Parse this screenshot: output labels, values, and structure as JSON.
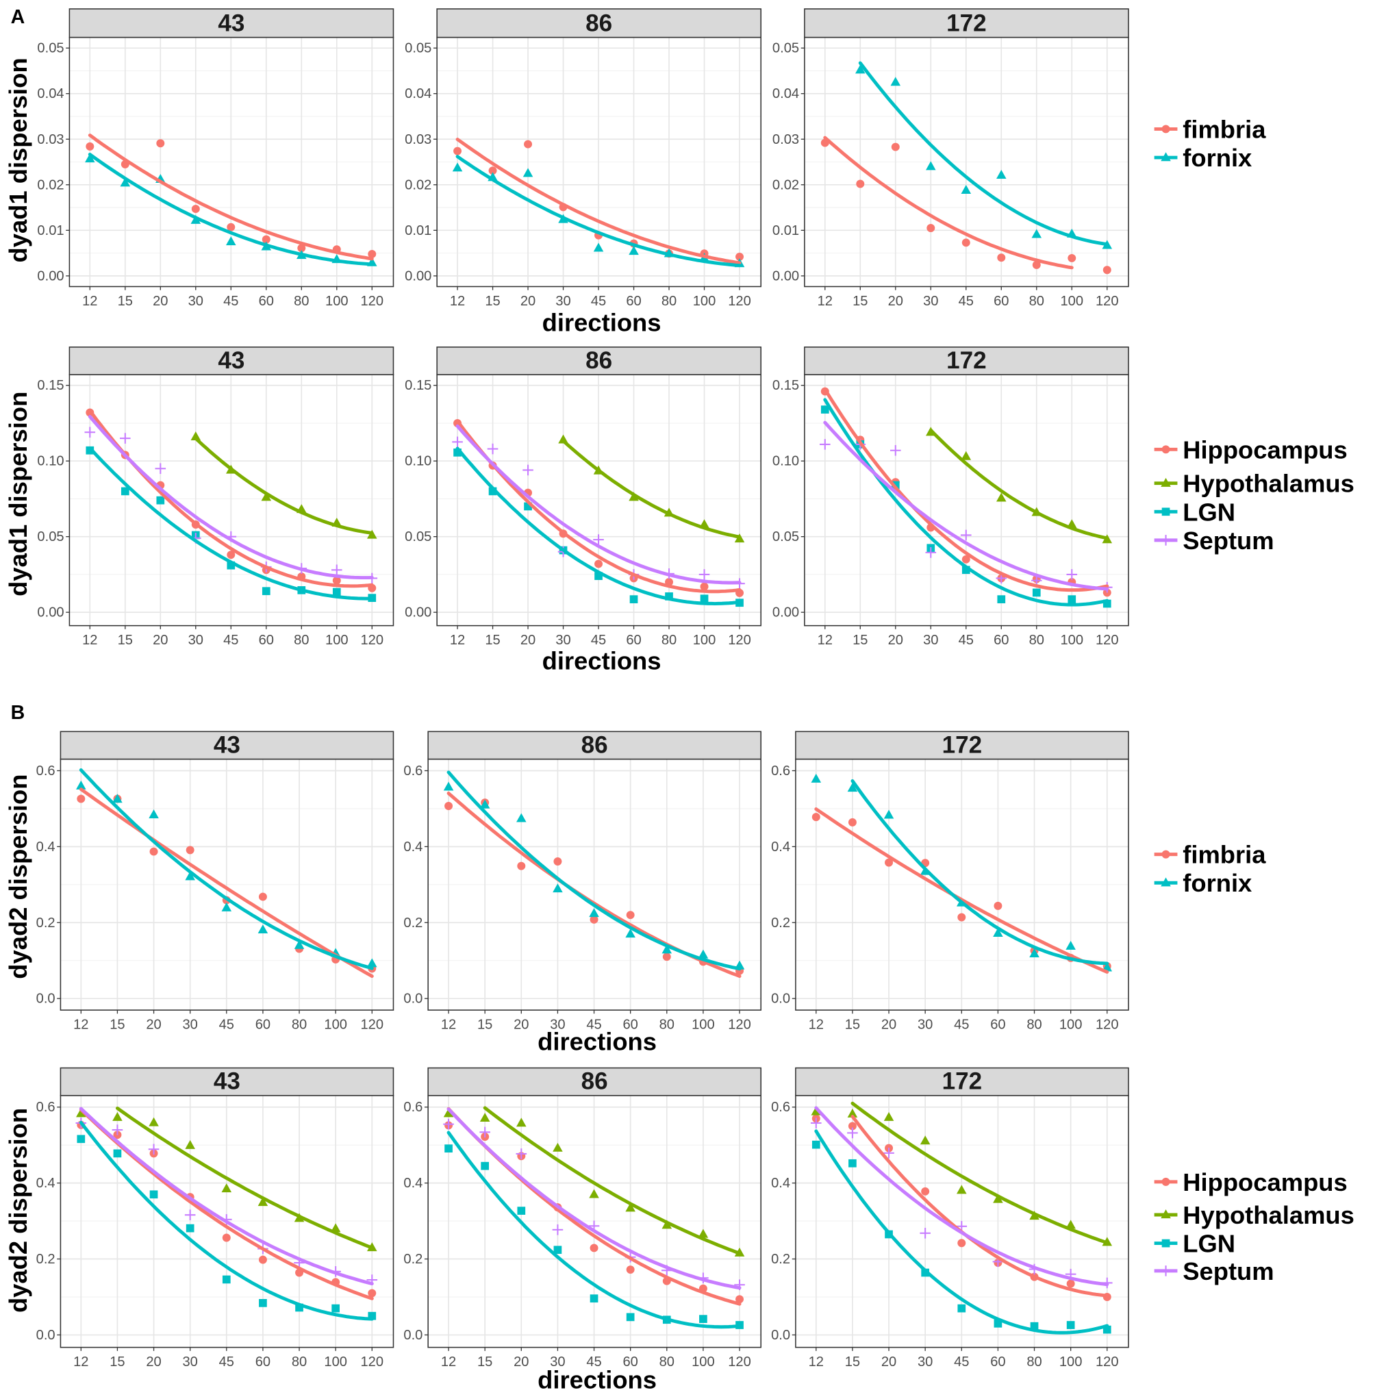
{
  "section_labels": [
    "A",
    "B"
  ],
  "styles": {
    "fimbria": {
      "color": "#F8766D",
      "shape": "circle"
    },
    "fornix": {
      "color": "#00BFC4",
      "shape": "triangle"
    },
    "Hippocampus": {
      "color": "#F8766D",
      "shape": "circle"
    },
    "Hypothalamus": {
      "color": "#7CAE00",
      "shape": "triangle"
    },
    "LGN": {
      "color": "#00BFC4",
      "shape": "square"
    },
    "Septum": {
      "color": "#C77CFF",
      "shape": "plus"
    }
  },
  "legends": [
    [
      "fimbria",
      "fornix"
    ],
    [
      "Hippocampus",
      "Hypothalamus",
      "LGN",
      "Septum"
    ],
    [
      "fimbria",
      "fornix"
    ],
    [
      "Hippocampus",
      "Hypothalamus",
      "LGN",
      "Septum"
    ]
  ],
  "chart_data": [
    {
      "type": "scatter",
      "section": "A",
      "row": 0,
      "title": "43",
      "xlabel": "directions",
      "ylabel": "dyad1 dispersion",
      "categories": [
        "12",
        "15",
        "20",
        "30",
        "45",
        "60",
        "80",
        "100",
        "120"
      ],
      "yticks": [
        0,
        0.01,
        0.02,
        0.03,
        0.04,
        0.05
      ],
      "ytick_labels": [
        "0.00",
        "0.01",
        "0.02",
        "0.03",
        "0.04",
        "0.05"
      ],
      "ylim": [
        0,
        0.05
      ],
      "grid": true,
      "series": [
        {
          "name": "fimbria",
          "values": [
            0.0284,
            0.0245,
            0.0291,
            0.0147,
            0.0107,
            0.008,
            0.0061,
            0.0058,
            0.0048
          ]
        },
        {
          "name": "fornix",
          "values": [
            0.0257,
            0.0204,
            0.0212,
            0.0122,
            0.0075,
            0.0064,
            0.0045,
            0.0036,
            0.0029
          ]
        }
      ]
    },
    {
      "type": "scatter",
      "section": "A",
      "row": 0,
      "title": "86",
      "xlabel": "directions",
      "ylabel": "dyad1 dispersion",
      "categories": [
        "12",
        "15",
        "20",
        "30",
        "45",
        "60",
        "80",
        "100",
        "120"
      ],
      "yticks": [
        0,
        0.01,
        0.02,
        0.03,
        0.04,
        0.05
      ],
      "ytick_labels": [
        "0.00",
        "0.01",
        "0.02",
        "0.03",
        "0.04",
        "0.05"
      ],
      "ylim": [
        0,
        0.05
      ],
      "grid": true,
      "series": [
        {
          "name": "fimbria",
          "values": [
            0.0274,
            0.0231,
            0.0289,
            0.0151,
            0.0089,
            0.0071,
            0.0049,
            0.0049,
            0.0042
          ]
        },
        {
          "name": "fornix",
          "values": [
            0.0237,
            0.0216,
            0.0225,
            0.0124,
            0.0061,
            0.0054,
            0.0049,
            0.0039,
            0.0027
          ]
        }
      ]
    },
    {
      "type": "scatter",
      "section": "A",
      "row": 0,
      "title": "172",
      "xlabel": "directions",
      "ylabel": "dyad1 dispersion",
      "categories": [
        "12",
        "15",
        "20",
        "30",
        "45",
        "60",
        "80",
        "100",
        "120"
      ],
      "yticks": [
        0,
        0.01,
        0.02,
        0.03,
        0.04,
        0.05
      ],
      "ytick_labels": [
        "0.00",
        "0.01",
        "0.02",
        "0.03",
        "0.04",
        "0.05"
      ],
      "ylim": [
        0,
        0.05
      ],
      "grid": true,
      "series": [
        {
          "name": "fimbria",
          "values": [
            0.0292,
            0.0202,
            0.0283,
            0.0105,
            0.0073,
            0.004,
            0.0024,
            0.0039,
            0.0013
          ],
          "fit_end": "100"
        },
        {
          "name": "fornix",
          "values": [
            null,
            0.0452,
            0.0425,
            0.024,
            0.0188,
            0.0221,
            0.0091,
            0.0092,
            0.0067
          ]
        }
      ]
    },
    {
      "type": "scatter",
      "section": "A",
      "row": 1,
      "title": "43",
      "xlabel": "directions",
      "ylabel": "dyad1 dispersion",
      "categories": [
        "12",
        "15",
        "20",
        "30",
        "45",
        "60",
        "80",
        "100",
        "120"
      ],
      "yticks": [
        0,
        0.05,
        0.1,
        0.15
      ],
      "ytick_labels": [
        "0.00",
        "0.05",
        "0.10",
        "0.15"
      ],
      "ylim": [
        0,
        0.15
      ],
      "grid": true,
      "series": [
        {
          "name": "Hippocampus",
          "values": [
            0.132,
            0.104,
            0.084,
            0.058,
            0.038,
            0.028,
            0.0236,
            0.021,
            0.016
          ]
        },
        {
          "name": "Hypothalamus",
          "values": [
            null,
            null,
            null,
            0.116,
            0.094,
            0.076,
            0.068,
            0.059,
            0.051
          ]
        },
        {
          "name": "LGN",
          "values": [
            0.107,
            0.08,
            0.074,
            0.051,
            0.031,
            0.014,
            0.0146,
            0.0134,
            0.0095
          ]
        },
        {
          "name": "Septum",
          "values": [
            0.119,
            0.115,
            0.095,
            0.049,
            0.05,
            0.03,
            0.029,
            0.028,
            0.0225
          ]
        }
      ]
    },
    {
      "type": "scatter",
      "section": "A",
      "row": 1,
      "title": "86",
      "xlabel": "directions",
      "ylabel": "dyad1 dispersion",
      "categories": [
        "12",
        "15",
        "20",
        "30",
        "45",
        "60",
        "80",
        "100",
        "120"
      ],
      "yticks": [
        0,
        0.05,
        0.1,
        0.15
      ],
      "ytick_labels": [
        "0.00",
        "0.05",
        "0.10",
        "0.15"
      ],
      "ylim": [
        0,
        0.15
      ],
      "grid": true,
      "series": [
        {
          "name": "Hippocampus",
          "values": [
            0.125,
            0.097,
            0.079,
            0.052,
            0.032,
            0.0225,
            0.02,
            0.017,
            0.0128
          ]
        },
        {
          "name": "Hypothalamus",
          "values": [
            null,
            null,
            null,
            0.114,
            0.0935,
            0.076,
            0.0656,
            0.058,
            0.0485
          ]
        },
        {
          "name": "LGN",
          "values": [
            0.1056,
            0.08,
            0.07,
            0.041,
            0.024,
            0.0086,
            0.0105,
            0.009,
            0.0063
          ]
        },
        {
          "name": "Septum",
          "values": [
            0.1126,
            0.108,
            0.094,
            0.04,
            0.048,
            0.025,
            0.0255,
            0.025,
            0.019
          ]
        }
      ]
    },
    {
      "type": "scatter",
      "section": "A",
      "row": 1,
      "title": "172",
      "xlabel": "directions",
      "ylabel": "dyad1 dispersion",
      "categories": [
        "12",
        "15",
        "20",
        "30",
        "45",
        "60",
        "80",
        "100",
        "120"
      ],
      "yticks": [
        0,
        0.05,
        0.1,
        0.15
      ],
      "ytick_labels": [
        "0.00",
        "0.05",
        "0.10",
        "0.15"
      ],
      "ylim": [
        0,
        0.15
      ],
      "grid": true,
      "series": [
        {
          "name": "Hippocampus",
          "values": [
            0.146,
            0.114,
            0.086,
            0.056,
            0.035,
            0.0225,
            0.022,
            0.02,
            0.013
          ]
        },
        {
          "name": "Hypothalamus",
          "values": [
            null,
            null,
            null,
            0.119,
            0.103,
            0.0755,
            0.066,
            0.058,
            0.048
          ]
        },
        {
          "name": "LGN",
          "values": [
            0.134,
            0.111,
            0.084,
            0.0425,
            0.028,
            0.0086,
            0.013,
            0.0086,
            0.0057
          ]
        },
        {
          "name": "Septum",
          "values": [
            0.111,
            0.111,
            0.107,
            0.0395,
            0.051,
            0.0225,
            0.021,
            0.025,
            0.0165
          ]
        }
      ]
    },
    {
      "type": "scatter",
      "section": "B",
      "row": 2,
      "title": "43",
      "xlabel": "directions",
      "ylabel": "dyad2 dispersion",
      "categories": [
        "12",
        "15",
        "20",
        "30",
        "45",
        "60",
        "80",
        "100",
        "120"
      ],
      "yticks": [
        0,
        0.2,
        0.4,
        0.6
      ],
      "ytick_labels": [
        "0.0",
        "0.2",
        "0.4",
        "0.6"
      ],
      "ylim": [
        0,
        0.6
      ],
      "grid": true,
      "series": [
        {
          "name": "fimbria",
          "values": [
            0.526,
            0.526,
            0.387,
            0.391,
            0.259,
            0.268,
            0.131,
            0.103,
            0.079
          ]
        },
        {
          "name": "fornix",
          "values": [
            0.56,
            0.525,
            0.484,
            0.321,
            0.239,
            0.181,
            0.14,
            0.119,
            0.092
          ]
        }
      ]
    },
    {
      "type": "scatter",
      "section": "B",
      "row": 2,
      "title": "86",
      "xlabel": "directions",
      "ylabel": "dyad2 dispersion",
      "categories": [
        "12",
        "15",
        "20",
        "30",
        "45",
        "60",
        "80",
        "100",
        "120"
      ],
      "yticks": [
        0,
        0.2,
        0.4,
        0.6
      ],
      "ytick_labels": [
        "0.0",
        "0.2",
        "0.4",
        "0.6"
      ],
      "ylim": [
        0,
        0.6
      ],
      "grid": true,
      "series": [
        {
          "name": "fimbria",
          "values": [
            0.507,
            0.516,
            0.349,
            0.361,
            0.208,
            0.22,
            0.11,
            0.097,
            0.073
          ]
        },
        {
          "name": "fornix",
          "values": [
            0.557,
            0.51,
            0.474,
            0.289,
            0.224,
            0.17,
            0.128,
            0.115,
            0.086
          ]
        }
      ]
    },
    {
      "type": "scatter",
      "section": "B",
      "row": 2,
      "title": "172",
      "xlabel": "directions",
      "ylabel": "dyad2 dispersion",
      "categories": [
        "12",
        "15",
        "20",
        "30",
        "45",
        "60",
        "80",
        "100",
        "120"
      ],
      "yticks": [
        0,
        0.2,
        0.4,
        0.6
      ],
      "ytick_labels": [
        "0.0",
        "0.2",
        "0.4",
        "0.6"
      ],
      "ylim": [
        0,
        0.6
      ],
      "grid": true,
      "series": [
        {
          "name": "fimbria",
          "values": [
            0.478,
            0.464,
            0.358,
            0.357,
            0.214,
            0.244,
            0.126,
            0.107,
            0.085
          ]
        },
        {
          "name": "fornix",
          "values": [
            0.578,
            0.554,
            0.483,
            0.335,
            0.252,
            0.172,
            0.118,
            0.138,
            0.081
          ],
          "fit_start": "15"
        }
      ]
    },
    {
      "type": "scatter",
      "section": "B",
      "row": 3,
      "title": "43",
      "xlabel": "directions",
      "ylabel": "dyad2 dispersion",
      "categories": [
        "12",
        "15",
        "20",
        "30",
        "45",
        "60",
        "80",
        "100",
        "120"
      ],
      "yticks": [
        0,
        0.2,
        0.4,
        0.6
      ],
      "ytick_labels": [
        "0.0",
        "0.2",
        "0.4",
        "0.6"
      ],
      "ylim": [
        0,
        0.6
      ],
      "grid": true,
      "series": [
        {
          "name": "Hippocampus",
          "values": [
            0.553,
            0.527,
            0.478,
            0.363,
            0.256,
            0.198,
            0.164,
            0.139,
            0.11
          ]
        },
        {
          "name": "Hypothalamus",
          "values": [
            0.583,
            0.573,
            0.559,
            0.499,
            0.385,
            0.349,
            0.307,
            0.28,
            0.23
          ],
          "fit_start": "15"
        },
        {
          "name": "LGN",
          "values": [
            0.516,
            0.478,
            0.37,
            0.281,
            0.146,
            0.084,
            0.072,
            0.07,
            0.05
          ]
        },
        {
          "name": "Septum",
          "values": [
            0.558,
            0.54,
            0.489,
            0.316,
            0.304,
            0.227,
            0.19,
            0.167,
            0.145
          ]
        }
      ]
    },
    {
      "type": "scatter",
      "section": "B",
      "row": 3,
      "title": "86",
      "xlabel": "directions",
      "ylabel": "dyad2 dispersion",
      "categories": [
        "12",
        "15",
        "20",
        "30",
        "45",
        "60",
        "80",
        "100",
        "120"
      ],
      "yticks": [
        0,
        0.2,
        0.4,
        0.6
      ],
      "ytick_labels": [
        "0.0",
        "0.2",
        "0.4",
        "0.6"
      ],
      "ylim": [
        0,
        0.6
      ],
      "grid": true,
      "series": [
        {
          "name": "Hippocampus",
          "values": [
            0.552,
            0.522,
            0.471,
            0.336,
            0.229,
            0.172,
            0.142,
            0.122,
            0.094
          ]
        },
        {
          "name": "Hypothalamus",
          "values": [
            0.583,
            0.571,
            0.558,
            0.492,
            0.37,
            0.334,
            0.289,
            0.265,
            0.216
          ],
          "fit_start": "15"
        },
        {
          "name": "LGN",
          "values": [
            0.491,
            0.445,
            0.327,
            0.224,
            0.096,
            0.047,
            0.04,
            0.042,
            0.026
          ]
        },
        {
          "name": "Septum",
          "values": [
            0.555,
            0.534,
            0.477,
            0.277,
            0.287,
            0.205,
            0.17,
            0.15,
            0.132
          ]
        }
      ]
    },
    {
      "type": "scatter",
      "section": "B",
      "row": 3,
      "title": "172",
      "xlabel": "directions",
      "ylabel": "dyad2 dispersion",
      "categories": [
        "12",
        "15",
        "20",
        "30",
        "45",
        "60",
        "80",
        "100",
        "120"
      ],
      "yticks": [
        0,
        0.2,
        0.4,
        0.6
      ],
      "ytick_labels": [
        "0.0",
        "0.2",
        "0.4",
        "0.6"
      ],
      "ylim": [
        0,
        0.6
      ],
      "grid": true,
      "series": [
        {
          "name": "Hippocampus",
          "values": [
            0.57,
            0.55,
            0.492,
            0.378,
            0.242,
            0.19,
            0.153,
            0.135,
            0.1
          ],
          "fit_start": "15"
        },
        {
          "name": "Hypothalamus",
          "values": [
            0.588,
            0.582,
            0.573,
            0.511,
            0.381,
            0.357,
            0.313,
            0.289,
            0.244
          ],
          "fit_start": "15"
        },
        {
          "name": "LGN",
          "values": [
            0.501,
            0.452,
            0.265,
            0.164,
            0.07,
            0.03,
            0.023,
            0.026,
            0.014
          ]
        },
        {
          "name": "Septum",
          "values": [
            0.558,
            0.532,
            0.479,
            0.268,
            0.286,
            0.193,
            0.173,
            0.16,
            0.137
          ]
        }
      ]
    }
  ]
}
